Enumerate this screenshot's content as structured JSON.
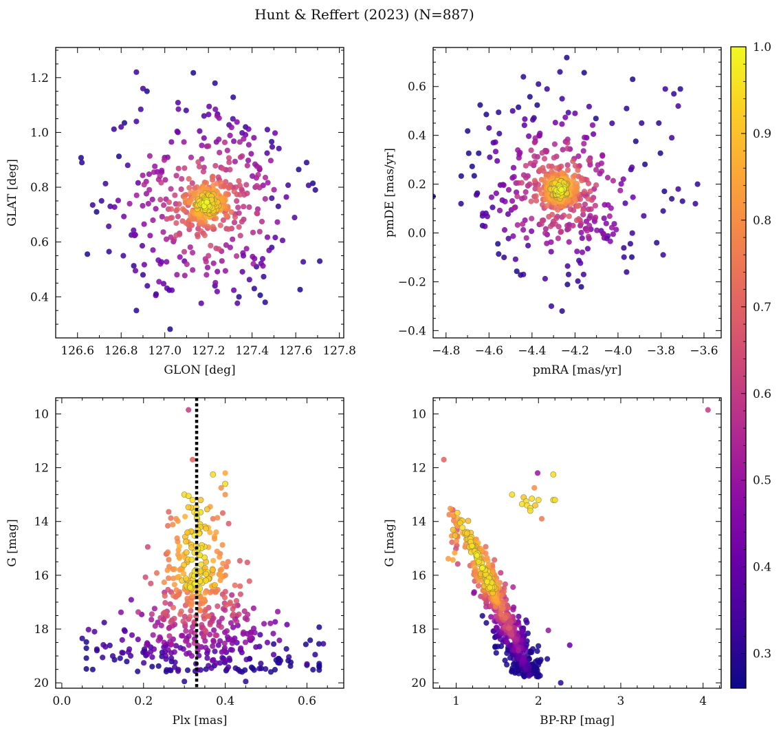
{
  "figure": {
    "suptitle": "Hunt & Reffert (2023) (N=887)"
  },
  "colorbar": {
    "colormap": "plasma",
    "range": [
      0.26,
      1.0
    ],
    "ticks": [
      0.3,
      0.4,
      0.5,
      0.6,
      0.7,
      0.8,
      0.9,
      1.0
    ],
    "tick_labels": [
      "0.3",
      "0.4",
      "0.5",
      "0.6",
      "0.7",
      "0.8",
      "0.9",
      "1.0"
    ]
  },
  "chart_data": [
    {
      "type": "scatter",
      "panel": "top-left",
      "xlabel": "GLON [deg]",
      "ylabel": "GLAT [deg]",
      "xlim": [
        126.5,
        127.82
      ],
      "ylim": [
        0.25,
        1.31
      ],
      "xticks": [
        126.6,
        126.8,
        127.0,
        127.2,
        127.4,
        127.6,
        127.8
      ],
      "xtick_labels": [
        "126.6",
        "126.8",
        "127.0",
        "127.2",
        "127.4",
        "127.6",
        "127.8"
      ],
      "yticks": [
        0.4,
        0.6,
        0.8,
        1.0,
        1.2
      ],
      "ytick_labels": [
        "0.4",
        "0.6",
        "0.8",
        "1.0",
        "1.2"
      ],
      "cluster": {
        "center": [
          127.19,
          0.74
        ],
        "core_sigma": [
          0.05,
          0.035
        ],
        "halo_sigma": [
          0.2,
          0.17
        ]
      },
      "points": [
        {
          "x": 126.62,
          "y": 0.89,
          "p": 0.3
        },
        {
          "x": 126.87,
          "y": 1.22,
          "p": 0.32
        },
        {
          "x": 126.9,
          "y": 1.16,
          "p": 0.34
        },
        {
          "x": 127.23,
          "y": 1.18,
          "p": 0.3
        },
        {
          "x": 126.8,
          "y": 1.02,
          "p": 0.35
        },
        {
          "x": 126.87,
          "y": 1.04,
          "p": 0.33
        },
        {
          "x": 127.06,
          "y": 1.0,
          "p": 0.4
        },
        {
          "x": 127.2,
          "y": 0.95,
          "p": 0.55
        },
        {
          "x": 127.37,
          "y": 1.02,
          "p": 0.32
        },
        {
          "x": 127.47,
          "y": 1.01,
          "p": 0.34
        },
        {
          "x": 127.65,
          "y": 0.89,
          "p": 0.3
        },
        {
          "x": 127.69,
          "y": 0.79,
          "p": 0.3
        },
        {
          "x": 127.71,
          "y": 0.53,
          "p": 0.3
        },
        {
          "x": 126.71,
          "y": 0.75,
          "p": 0.32
        },
        {
          "x": 126.75,
          "y": 0.73,
          "p": 0.35
        },
        {
          "x": 126.81,
          "y": 0.55,
          "p": 0.33
        },
        {
          "x": 126.87,
          "y": 0.35,
          "p": 0.3
        },
        {
          "x": 126.9,
          "y": 0.48,
          "p": 0.31
        },
        {
          "x": 126.92,
          "y": 0.44,
          "p": 0.33
        },
        {
          "x": 126.96,
          "y": 0.41,
          "p": 0.32
        },
        {
          "x": 127.23,
          "y": 0.44,
          "p": 0.34
        },
        {
          "x": 127.34,
          "y": 0.4,
          "p": 0.3
        },
        {
          "x": 127.41,
          "y": 0.43,
          "p": 0.31
        },
        {
          "x": 127.46,
          "y": 0.38,
          "p": 0.3
        },
        {
          "x": 127.42,
          "y": 0.51,
          "p": 0.33
        },
        {
          "x": 127.49,
          "y": 0.58,
          "p": 0.32
        },
        {
          "x": 127.52,
          "y": 0.73,
          "p": 0.31
        },
        {
          "x": 127.49,
          "y": 0.76,
          "p": 0.34
        },
        {
          "x": 127.24,
          "y": 1.06,
          "p": 0.5
        },
        {
          "x": 127.09,
          "y": 0.53,
          "p": 0.4
        },
        {
          "x": 127.2,
          "y": 0.55,
          "p": 0.6
        },
        {
          "x": 127.3,
          "y": 0.58,
          "p": 0.5
        },
        {
          "x": 126.98,
          "y": 0.52,
          "p": 0.45
        },
        {
          "x": 127.36,
          "y": 0.55,
          "p": 0.4
        },
        {
          "x": 126.83,
          "y": 0.88,
          "p": 0.35
        }
      ]
    },
    {
      "type": "scatter",
      "panel": "top-right",
      "xlabel": "pmRA [mas/yr]",
      "ylabel": "pmDE [mas/yr]",
      "xlim": [
        -4.86,
        -3.52
      ],
      "ylim": [
        -0.43,
        0.76
      ],
      "xticks": [
        -4.8,
        -4.6,
        -4.4,
        -4.2,
        -4.0,
        -3.8,
        -3.6
      ],
      "xtick_labels": [
        "−4.8",
        "−4.6",
        "−4.4",
        "−4.2",
        "−4.0",
        "−3.8",
        "−3.6"
      ],
      "yticks": [
        -0.4,
        -0.2,
        0.0,
        0.2,
        0.4,
        0.6
      ],
      "ytick_labels": [
        "−0.4",
        "−0.2",
        "0.0",
        "0.2",
        "0.4",
        "0.6"
      ],
      "cluster": {
        "center": [
          -4.27,
          0.18
        ],
        "core_sigma": [
          0.04,
          0.035
        ],
        "halo_sigma": [
          0.17,
          0.15
        ]
      },
      "points": [
        {
          "x": -4.73,
          "y": 0.12,
          "p": 0.3
        },
        {
          "x": -4.63,
          "y": 0.07,
          "p": 0.33
        },
        {
          "x": -4.63,
          "y": 0.03,
          "p": 0.31
        },
        {
          "x": -4.6,
          "y": 0.43,
          "p": 0.34
        },
        {
          "x": -4.44,
          "y": 0.64,
          "p": 0.3
        },
        {
          "x": -4.37,
          "y": 0.61,
          "p": 0.31
        },
        {
          "x": -4.33,
          "y": 0.59,
          "p": 0.32
        },
        {
          "x": -4.27,
          "y": 0.66,
          "p": 0.3
        },
        {
          "x": -4.26,
          "y": 0.55,
          "p": 0.33
        },
        {
          "x": -3.96,
          "y": 0.51,
          "p": 0.3
        },
        {
          "x": -3.78,
          "y": 0.59,
          "p": 0.32
        },
        {
          "x": -3.74,
          "y": 0.57,
          "p": 0.31
        },
        {
          "x": -3.71,
          "y": 0.59,
          "p": 0.3
        },
        {
          "x": -3.72,
          "y": 0.52,
          "p": 0.34
        },
        {
          "x": -3.75,
          "y": 0.39,
          "p": 0.33
        },
        {
          "x": -3.81,
          "y": 0.45,
          "p": 0.3
        },
        {
          "x": -3.89,
          "y": 0.45,
          "p": 0.31
        },
        {
          "x": -3.63,
          "y": 0.2,
          "p": 0.3
        },
        {
          "x": -3.64,
          "y": 0.12,
          "p": 0.32
        },
        {
          "x": -3.7,
          "y": 0.13,
          "p": 0.31
        },
        {
          "x": -3.72,
          "y": 0.18,
          "p": 0.33
        },
        {
          "x": -3.75,
          "y": 0.14,
          "p": 0.3
        },
        {
          "x": -3.79,
          "y": 0.09,
          "p": 0.31
        },
        {
          "x": -3.79,
          "y": -0.09,
          "p": 0.32
        },
        {
          "x": -3.82,
          "y": -0.04,
          "p": 0.3
        },
        {
          "x": -3.88,
          "y": 0.07,
          "p": 0.34
        },
        {
          "x": -3.94,
          "y": 0.26,
          "p": 0.32
        },
        {
          "x": -3.96,
          "y": -0.16,
          "p": 0.31
        },
        {
          "x": -4.26,
          "y": -0.32,
          "p": 0.3
        },
        {
          "x": -4.31,
          "y": -0.3,
          "p": 0.32
        },
        {
          "x": -4.16,
          "y": -0.17,
          "p": 0.33
        },
        {
          "x": -4.23,
          "y": -0.17,
          "p": 0.31
        },
        {
          "x": -4.44,
          "y": -0.17,
          "p": 0.33
        },
        {
          "x": -4.53,
          "y": -0.1,
          "p": 0.31
        },
        {
          "x": -4.58,
          "y": 0.37,
          "p": 0.35
        },
        {
          "x": -4.49,
          "y": 0.5,
          "p": 0.34
        },
        {
          "x": -4.2,
          "y": 0.49,
          "p": 0.4
        }
      ]
    },
    {
      "type": "scatter",
      "panel": "bottom-left",
      "xlabel": "Plx [mas]",
      "ylabel": "G [mag]",
      "xlim": [
        -0.015,
        0.69
      ],
      "ylim": [
        20.2,
        9.4
      ],
      "y_inverted": true,
      "xticks": [
        0.0,
        0.2,
        0.4,
        0.6
      ],
      "xtick_labels": [
        "0.0",
        "0.2",
        "0.4",
        "0.6"
      ],
      "yticks": [
        10,
        12,
        14,
        16,
        18,
        20
      ],
      "ytick_labels": [
        "10",
        "12",
        "14",
        "16",
        "18",
        "20"
      ],
      "reference_line": {
        "x": 0.33,
        "style": "dotted",
        "color": "#000000"
      },
      "points": [
        {
          "x": 0.31,
          "y": 9.85,
          "p": 0.6
        },
        {
          "x": 0.32,
          "y": 11.7,
          "p": 0.7
        },
        {
          "x": 0.37,
          "y": 12.25,
          "p": 0.95
        },
        {
          "x": 0.4,
          "y": 12.2,
          "p": 0.85
        },
        {
          "x": 0.39,
          "y": 12.75,
          "p": 0.8
        },
        {
          "x": 0.4,
          "y": 12.6,
          "p": 0.95
        },
        {
          "x": 0.4,
          "y": 13.0,
          "p": 0.8
        },
        {
          "x": 0.3,
          "y": 13.0,
          "p": 0.95
        },
        {
          "x": 0.31,
          "y": 13.05,
          "p": 0.95
        },
        {
          "x": 0.32,
          "y": 13.2,
          "p": 0.95
        },
        {
          "x": 0.34,
          "y": 13.2,
          "p": 0.9
        },
        {
          "x": 0.28,
          "y": 13.9,
          "p": 0.8
        },
        {
          "x": 0.37,
          "y": 13.9,
          "p": 0.75
        },
        {
          "x": 0.05,
          "y": 18.35,
          "p": 0.3
        },
        {
          "x": 0.08,
          "y": 18.1,
          "p": 0.35
        },
        {
          "x": 0.62,
          "y": 18.95,
          "p": 0.3
        },
        {
          "x": 0.64,
          "y": 18.55,
          "p": 0.32
        },
        {
          "x": 0.6,
          "y": 19.3,
          "p": 0.35
        },
        {
          "x": 0.45,
          "y": 19.95,
          "p": 0.3
        },
        {
          "x": 0.3,
          "y": 19.95,
          "p": 0.3
        }
      ],
      "distribution": {
        "main_sequence_parallax_center": 0.33,
        "bright_sigma": 0.035,
        "faint_sigma": 0.13
      }
    },
    {
      "type": "scatter",
      "panel": "bottom-right",
      "xlabel": "BP-RP [mag]",
      "ylabel": "G [mag]",
      "xlim": [
        0.72,
        4.22
      ],
      "ylim": [
        20.2,
        9.4
      ],
      "y_inverted": true,
      "xticks": [
        1,
        2,
        3,
        4
      ],
      "xtick_labels": [
        "1",
        "2",
        "3",
        "4"
      ],
      "yticks": [
        10,
        12,
        14,
        16,
        18,
        20
      ],
      "ytick_labels": [
        "10",
        "12",
        "14",
        "16",
        "18",
        "20"
      ],
      "points": [
        {
          "x": 4.06,
          "y": 9.85,
          "p": 0.6
        },
        {
          "x": 0.85,
          "y": 11.7,
          "p": 0.7
        },
        {
          "x": 1.99,
          "y": 12.2,
          "p": 0.5
        },
        {
          "x": 2.18,
          "y": 12.25,
          "p": 0.95
        },
        {
          "x": 1.95,
          "y": 12.75,
          "p": 0.8
        },
        {
          "x": 1.82,
          "y": 13.1,
          "p": 0.9
        },
        {
          "x": 1.85,
          "y": 13.25,
          "p": 0.95
        },
        {
          "x": 1.92,
          "y": 13.15,
          "p": 0.95
        },
        {
          "x": 2.0,
          "y": 13.2,
          "p": 0.95
        },
        {
          "x": 2.18,
          "y": 13.2,
          "p": 0.95
        },
        {
          "x": 2.2,
          "y": 13.2,
          "p": 0.95
        },
        {
          "x": 1.68,
          "y": 13.0,
          "p": 0.95
        },
        {
          "x": 1.8,
          "y": 13.35,
          "p": 0.95
        },
        {
          "x": 1.86,
          "y": 13.4,
          "p": 0.95
        },
        {
          "x": 1.9,
          "y": 13.5,
          "p": 0.95
        },
        {
          "x": 1.9,
          "y": 13.6,
          "p": 0.95
        },
        {
          "x": 1.96,
          "y": 13.4,
          "p": 0.9
        },
        {
          "x": 2.04,
          "y": 13.9,
          "p": 0.75
        },
        {
          "x": 2.38,
          "y": 18.6,
          "p": 0.4
        },
        {
          "x": 2.27,
          "y": 20.0,
          "p": 0.3
        },
        {
          "x": 2.12,
          "y": 18.05,
          "p": 0.5
        }
      ],
      "distribution": {
        "main_sequence": "diagonal band from (1.0, 13.5) to (1.9, 19.8)"
      }
    }
  ]
}
